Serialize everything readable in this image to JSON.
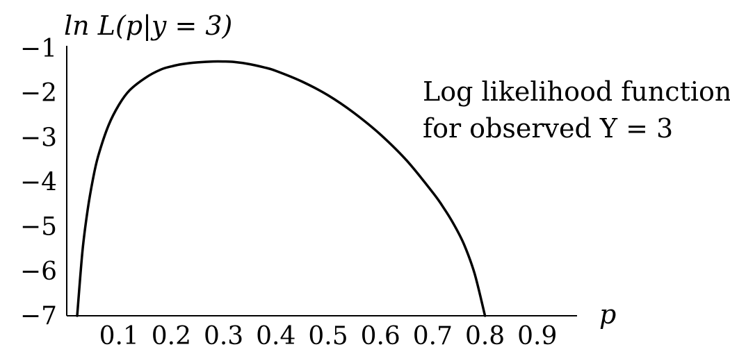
{
  "chart_data": {
    "type": "line",
    "title": "",
    "ylabel": "ln L(p|y = 3)",
    "xlabel": "p",
    "xlim": [
      0,
      1
    ],
    "ylim": [
      -7,
      -1
    ],
    "x_ticks": [
      0.1,
      0.2,
      0.3,
      0.4,
      0.5,
      0.6,
      0.7,
      0.8,
      0.9
    ],
    "x_tick_labels": [
      "0.1",
      "0.2",
      "0.3",
      "0.4",
      "0.5",
      "0.6",
      "0.7",
      "0.8",
      "0.9"
    ],
    "y_ticks": [
      -1,
      -2,
      -3,
      -4,
      -5,
      -6,
      -7
    ],
    "y_tick_labels": [
      "−1",
      "−2",
      "−3",
      "−4",
      "−5",
      "−6",
      "−7"
    ],
    "grid": false,
    "annotation": [
      "Log likelihood function",
      "for observed Y = 3"
    ],
    "colors": {
      "line": "#000000",
      "axis": "#000000"
    },
    "series": [
      {
        "x": [
          0.02,
          0.03,
          0.04,
          0.05,
          0.06,
          0.08,
          0.1,
          0.12,
          0.15,
          0.18,
          0.2,
          0.22,
          0.25,
          0.28,
          0.3,
          0.32,
          0.35,
          0.38,
          0.4,
          0.45,
          0.5,
          0.55,
          0.6,
          0.65,
          0.7,
          0.72,
          0.74,
          0.76,
          0.78,
          0.8
        ],
        "y": [
          -7.0,
          -5.55,
          -4.62,
          -3.94,
          -3.42,
          -2.72,
          -2.26,
          -1.94,
          -1.66,
          -1.47,
          -1.4,
          -1.35,
          -1.31,
          -1.29,
          -1.29,
          -1.3,
          -1.35,
          -1.43,
          -1.5,
          -1.74,
          -2.05,
          -2.45,
          -2.93,
          -3.51,
          -4.23,
          -4.56,
          -4.94,
          -5.4,
          -6.05,
          -7.0
        ]
      }
    ]
  }
}
